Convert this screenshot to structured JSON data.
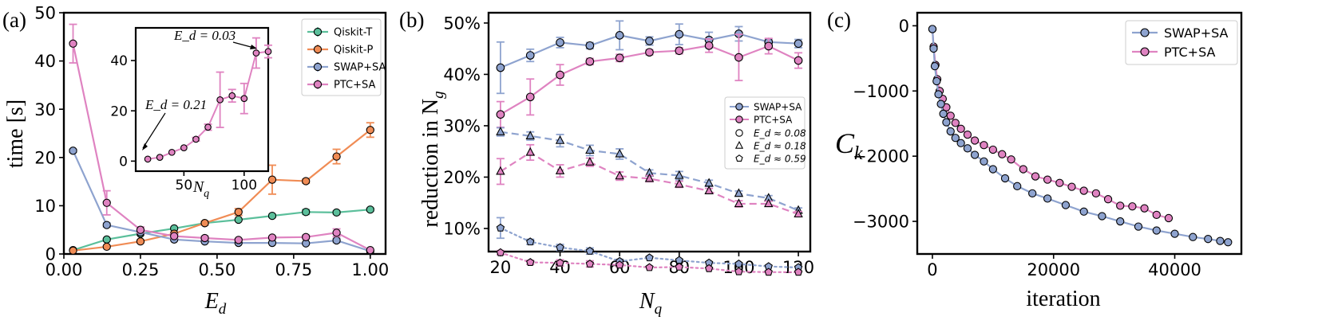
{
  "colors": {
    "qiskit_t": "#5bbf9b",
    "qiskit_p": "#f08c55",
    "swap_sa": "#8ea3cf",
    "ptc_sa": "#df83c1"
  },
  "chart_data": [
    {
      "panel": "(a)",
      "type": "line",
      "xlabel_main": "E",
      "xlabel_sub": "d",
      "ylabel": "time [s]",
      "xlim": [
        0,
        1.05
      ],
      "ylim": [
        0,
        50
      ],
      "xticks": [
        "0.00",
        "0.25",
        "0.50",
        "0.75",
        "1.00"
      ],
      "yticks": [
        "0",
        "10",
        "20",
        "30",
        "40",
        "50"
      ],
      "xtick_values": [
        0,
        0.25,
        0.5,
        0.75,
        1.0
      ],
      "ytick_values": [
        0,
        10,
        20,
        30,
        40,
        50
      ],
      "x": [
        0.03,
        0.14,
        0.25,
        0.36,
        0.46,
        0.57,
        0.68,
        0.79,
        0.89,
        1.0
      ],
      "series": [
        {
          "name": "Qiskit-T",
          "color_key": "qiskit_t",
          "values": [
            0.8,
            3.0,
            4.2,
            5.3,
            6.4,
            7.1,
            7.9,
            8.7,
            8.6,
            9.2
          ],
          "err": [
            0.2,
            0.2,
            0.2,
            0.2,
            0.2,
            0.2,
            0.3,
            0.5,
            0.3,
            0.3
          ]
        },
        {
          "name": "Qiskit-P",
          "color_key": "qiskit_p",
          "values": [
            0.7,
            1.5,
            2.6,
            4.2,
            6.4,
            8.7,
            15.4,
            15.1,
            20.2,
            25.7
          ],
          "err": [
            0.1,
            0.2,
            0.3,
            0.3,
            0.4,
            0.7,
            3.0,
            0.4,
            1.5,
            1.5
          ]
        },
        {
          "name": "SWAP+SA",
          "color_key": "swap_sa",
          "values": [
            21.4,
            6.0,
            4.5,
            3.0,
            2.6,
            2.3,
            2.3,
            2.2,
            2.8,
            0.6
          ],
          "err": [
            0.3,
            0.4,
            0.3,
            0.2,
            0.2,
            0.2,
            0.2,
            0.2,
            0.4,
            0.1
          ]
        },
        {
          "name": "PTC+SA",
          "color_key": "ptc_sa",
          "values": [
            43.6,
            10.6,
            5.0,
            3.7,
            3.3,
            2.9,
            3.4,
            3.5,
            4.4,
            0.8
          ],
          "err": [
            4.0,
            2.5,
            0.6,
            0.5,
            0.4,
            0.3,
            0.3,
            0.4,
            0.8,
            0.2
          ]
        }
      ],
      "inset": {
        "xlabel_main": "N",
        "xlabel_sub": "q",
        "xlim": [
          10,
          120
        ],
        "ylim": [
          -4,
          53
        ],
        "xticks": [
          "50",
          "100"
        ],
        "xtick_values": [
          50,
          100
        ],
        "yticks": [
          "0",
          "20",
          "40"
        ],
        "ytick_values": [
          0,
          20,
          40
        ],
        "series_name": "PTC+SA",
        "x": [
          20,
          30,
          40,
          50,
          60,
          70,
          80,
          90,
          100,
          110,
          120
        ],
        "values": [
          0.8,
          1.5,
          3.5,
          5.3,
          8.7,
          13.5,
          24.4,
          26.0,
          24.9,
          43.0,
          43.6
        ],
        "err": [
          0.2,
          0.3,
          0.4,
          0.5,
          0.7,
          1.2,
          11.0,
          2.5,
          6.0,
          6.0,
          2.5
        ],
        "annot_low": "E_d = 0.21",
        "annot_high": "E_d = 0.03"
      }
    },
    {
      "panel": "(b)",
      "type": "line",
      "xlabel_main": "N",
      "xlabel_sub": "q",
      "ylabel_main": "reduction in N",
      "ylabel_sub": "g",
      "xlim": [
        16,
        124
      ],
      "ylim": [
        5.5,
        52
      ],
      "xticks": [
        "20",
        "40",
        "60",
        "80",
        "100",
        "120"
      ],
      "xtick_values": [
        20,
        40,
        60,
        80,
        100,
        120
      ],
      "yticks": [
        "10%",
        "20%",
        "30%",
        "40%",
        "50%"
      ],
      "ytick_values": [
        10,
        20,
        30,
        40,
        50
      ],
      "x": [
        20,
        30,
        40,
        50,
        60,
        70,
        80,
        90,
        100,
        110,
        120
      ],
      "legend": {
        "methods": [
          "SWAP+SA",
          "PTC+SA"
        ],
        "markers": [
          "E_d ≈ 0.08",
          "E_d ≈ 0.18",
          "E_d ≈ 0.59"
        ]
      },
      "series": [
        {
          "name": "SWAP+SA",
          "Ed": "0.08",
          "color_key": "swap_sa",
          "marker": "circle",
          "dash": "solid",
          "values": [
            41.3,
            43.7,
            46.2,
            45.6,
            47.6,
            46.5,
            47.8,
            46.7,
            47.9,
            46.3,
            46.0
          ],
          "err": [
            5.0,
            1.2,
            1.0,
            0.6,
            2.8,
            0.8,
            2.0,
            1.5,
            1.4,
            0.5,
            0.8
          ]
        },
        {
          "name": "PTC+SA",
          "Ed": "0.08",
          "color_key": "ptc_sa",
          "marker": "circle",
          "dash": "solid",
          "values": [
            32.2,
            35.6,
            39.9,
            42.5,
            43.2,
            44.3,
            44.6,
            45.6,
            43.3,
            45.5,
            42.7
          ],
          "err": [
            2.5,
            3.5,
            2.0,
            0.6,
            0.7,
            0.5,
            0.6,
            1.3,
            4.5,
            1.5,
            1.5
          ]
        },
        {
          "name": "SWAP+SA",
          "Ed": "0.18",
          "color_key": "swap_sa",
          "marker": "triangle",
          "dash": "dashed",
          "values": [
            28.8,
            28.0,
            27.1,
            25.2,
            24.5,
            20.8,
            20.3,
            18.8,
            16.8,
            15.9,
            13.5
          ],
          "err": [
            0.8,
            0.8,
            1.2,
            1.0,
            1.0,
            0.6,
            0.8,
            0.6,
            0.5,
            0.5,
            0.5
          ]
        },
        {
          "name": "PTC+SA",
          "Ed": "0.18",
          "color_key": "ptc_sa",
          "marker": "triangle",
          "dash": "dashed",
          "values": [
            21.1,
            24.8,
            21.2,
            22.9,
            20.2,
            19.7,
            18.6,
            17.3,
            14.8,
            14.8,
            12.8
          ],
          "err": [
            2.5,
            1.5,
            1.2,
            0.8,
            0.8,
            0.6,
            0.6,
            0.5,
            0.6,
            0.5,
            0.5
          ]
        },
        {
          "name": "SWAP+SA",
          "Ed": "0.59",
          "color_key": "swap_sa",
          "marker": "pentagon",
          "dash": "dotted",
          "values": [
            10.1,
            7.4,
            6.3,
            5.6,
            3.6,
            4.3,
            3.8,
            3.3,
            3.1,
            2.6,
            2.4
          ],
          "err": [
            2.0,
            0.5,
            0.6,
            0.6,
            0.4,
            0.3,
            0.3,
            0.3,
            0.3,
            0.2,
            0.2
          ]
        },
        {
          "name": "PTC+SA",
          "Ed": "0.59",
          "color_key": "ptc_sa",
          "marker": "pentagon",
          "dash": "dotted",
          "values": [
            5.3,
            3.4,
            3.3,
            3.1,
            2.9,
            2.4,
            2.5,
            2.2,
            1.6,
            1.5,
            1.5
          ],
          "err": [
            0.4,
            0.4,
            0.6,
            0.6,
            0.4,
            0.3,
            0.3,
            0.3,
            0.3,
            0.2,
            0.2
          ]
        }
      ]
    },
    {
      "panel": "(c)",
      "type": "line",
      "xlabel": "iteration",
      "ylabel_main": "C",
      "ylabel_sub": "k",
      "xlim": [
        -2500,
        51000
      ],
      "ylim": [
        -3500,
        200
      ],
      "xticks": [
        "0",
        "20000",
        "40000"
      ],
      "xtick_values": [
        0,
        20000,
        40000
      ],
      "yticks": [
        "0",
        "−1000",
        "−2000",
        "−3000"
      ],
      "ytick_values": [
        0,
        -1000,
        -2000,
        -3000
      ],
      "series": [
        {
          "name": "SWAP+SA",
          "color_key": "swap_sa",
          "x": [
            0,
            200,
            400,
            700,
            1000,
            1400,
            1800,
            2300,
            3000,
            3800,
            4700,
            5800,
            7000,
            8500,
            10000,
            12000,
            14000,
            16500,
            19000,
            22000,
            25000,
            28000,
            31000,
            34000,
            37000,
            40000,
            43000,
            45500,
            47500,
            48800
          ],
          "values": [
            -50,
            -350,
            -620,
            -850,
            -1050,
            -1200,
            -1350,
            -1480,
            -1620,
            -1720,
            -1800,
            -1880,
            -1980,
            -2080,
            -2200,
            -2340,
            -2460,
            -2570,
            -2650,
            -2750,
            -2850,
            -2920,
            -3000,
            -3080,
            -3140,
            -3190,
            -3240,
            -3270,
            -3300,
            -3320
          ]
        },
        {
          "name": "PTC+SA",
          "color_key": "ptc_sa",
          "x": [
            0,
            200,
            500,
            800,
            1200,
            1700,
            2300,
            3000,
            3800,
            4700,
            5800,
            7000,
            8500,
            10000,
            11500,
            13000,
            15000,
            17000,
            19000,
            21000,
            23000,
            25000,
            27000,
            29000,
            31000,
            33000,
            35000,
            37000,
            39000
          ],
          "values": [
            -50,
            -320,
            -600,
            -820,
            -1000,
            -1120,
            -1250,
            -1380,
            -1490,
            -1580,
            -1670,
            -1760,
            -1830,
            -1900,
            -1970,
            -2050,
            -2200,
            -2310,
            -2360,
            -2410,
            -2470,
            -2530,
            -2570,
            -2660,
            -2760,
            -2770,
            -2800,
            -2900,
            -2950
          ]
        }
      ]
    }
  ]
}
